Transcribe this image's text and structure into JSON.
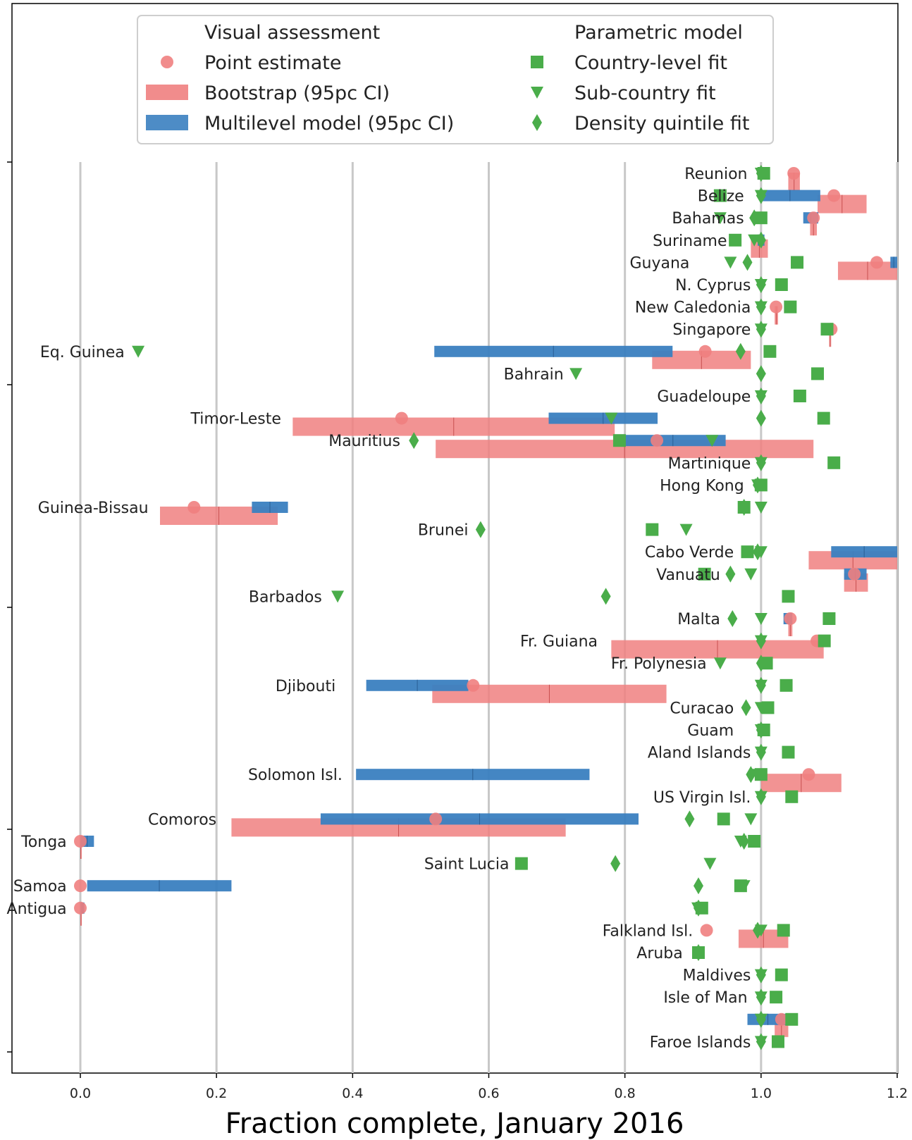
{
  "chart_data": {
    "type": "scatter",
    "xlabel": "Fraction complete, January 2016",
    "ylabel": "",
    "title": "",
    "xlim": [
      -0.1,
      1.2
    ],
    "x_ticks": [
      0.0,
      0.2,
      0.4,
      0.6,
      0.8,
      1.0,
      1.2
    ],
    "x_tick_labels": [
      "0.0",
      "0.2",
      "0.4",
      "0.6",
      "0.8",
      "1.0",
      "1.2"
    ],
    "grid": "vertical gridlines at x ticks",
    "legend": {
      "placement": "top-center",
      "columns": [
        {
          "heading": "Visual assessment",
          "entries": [
            {
              "label": "Point estimate",
              "marker": "circle",
              "color": "#f08080"
            },
            {
              "label": "Bootstrap (95pc CI)",
              "marker": "bar",
              "color": "#f08080"
            },
            {
              "label": "Multilevel model (95pc CI)",
              "marker": "bar",
              "color": "#3a7fc0"
            }
          ]
        },
        {
          "heading": "Parametric model",
          "entries": [
            {
              "label": "Country-level fit",
              "marker": "square",
              "color": "#4aad4a"
            },
            {
              "label": "Sub-country fit",
              "marker": "triangle",
              "color": "#4aad4a"
            },
            {
              "label": "Density quintile fit",
              "marker": "diamond",
              "color": "#4aad4a"
            }
          ]
        }
      ]
    },
    "colors": {
      "point": "#f08080",
      "bootstrap": "#f08080",
      "multilevel": "#3a7fc0",
      "parametric": "#4aad4a",
      "grid": "#c8c8c8"
    },
    "countries": [
      {
        "name": "Reunion",
        "label_x": 0.98,
        "point": 1.048,
        "boot": [
          1.04,
          1.057
        ],
        "ml": null,
        "square": 1.004,
        "triangle": 1.0,
        "diamond": 1.0
      },
      {
        "name": "Belize",
        "label_x": 0.975,
        "point": 1.107,
        "boot": [
          1.083,
          1.155
        ],
        "ml": [
          0.998,
          1.087
        ],
        "square": 0.94,
        "triangle": 1.0,
        "diamond": 1.0
      },
      {
        "name": "Bahamas",
        "label_x": 0.975,
        "point": 1.077,
        "boot": [
          1.072,
          1.082
        ],
        "ml": [
          1.062,
          1.084
        ],
        "square": 1.0,
        "triangle": 0.94,
        "diamond": 0.99
      },
      {
        "name": "Suriname",
        "label_x": 0.95,
        "point": null,
        "boot": [
          0.985,
          1.01
        ],
        "ml": [
          0.995,
          1.005
        ],
        "square": 0.962,
        "triangle": 0.99,
        "diamond": 1.0
      },
      {
        "name": "Guyana",
        "label_x": 0.895,
        "point": 1.17,
        "boot": [
          1.113,
          1.2
        ],
        "ml": [
          1.19,
          1.2
        ],
        "square": 1.053,
        "triangle": 0.955,
        "diamond": 0.98
      },
      {
        "name": "N. Cyprus",
        "label_x": 0.985,
        "point": null,
        "boot": null,
        "ml": null,
        "square": 1.03,
        "triangle": 1.0,
        "diamond": 1.0
      },
      {
        "name": "New Caledonia",
        "label_x": 0.985,
        "point": 1.022,
        "boot": [
          1.02,
          1.025
        ],
        "ml": null,
        "square": 1.043,
        "triangle": 1.0,
        "diamond": 1.0
      },
      {
        "name": "Singapore",
        "label_x": 0.985,
        "point": 1.103,
        "boot": [
          1.1,
          1.103
        ],
        "ml": [
          1.097,
          1.101
        ],
        "square": 1.097,
        "triangle": 1.0,
        "diamond": 1.0
      },
      {
        "name": "Eq. Guinea",
        "label_x": 0.065,
        "point": 0.918,
        "boot": [
          0.84,
          0.985
        ],
        "ml": [
          0.52,
          0.87
        ],
        "square": 1.013,
        "triangle": 0.085,
        "diamond": 0.97
      },
      {
        "name": "Bahrain",
        "label_x": 0.71,
        "point": null,
        "boot": null,
        "ml": null,
        "square": 1.083,
        "triangle": 0.728,
        "diamond": 1.0
      },
      {
        "name": "Guadeloupe",
        "label_x": 0.985,
        "point": null,
        "boot": null,
        "ml": null,
        "square": 1.057,
        "triangle": 1.0,
        "diamond": 1.0
      },
      {
        "name": "Timor-Leste",
        "label_x": 0.295,
        "point": 0.472,
        "boot": [
          0.312,
          0.785
        ],
        "ml": [
          0.688,
          0.848
        ],
        "square": 1.092,
        "triangle": 0.78,
        "diamond": 1.0
      },
      {
        "name": "Mauritius",
        "label_x": 0.47,
        "point": 0.847,
        "boot": [
          0.522,
          1.077
        ],
        "ml": [
          0.793,
          0.948
        ],
        "square": 0.792,
        "triangle": 0.928,
        "diamond": 0.49
      },
      {
        "name": "Martinique",
        "label_x": 0.985,
        "point": null,
        "boot": null,
        "ml": null,
        "square": 1.107,
        "triangle": 1.0,
        "diamond": 1.0
      },
      {
        "name": "Hong Kong",
        "label_x": 0.975,
        "point": null,
        "boot": null,
        "ml": null,
        "square": 1.0,
        "triangle": 0.995,
        "diamond": 0.995
      },
      {
        "name": "Guinea-Bissau",
        "label_x": 0.1,
        "point": 0.167,
        "boot": [
          0.117,
          0.29
        ],
        "ml": [
          0.252,
          0.305
        ],
        "square": 0.975,
        "triangle": 1.0,
        "diamond": 0.975
      },
      {
        "name": "Brunei",
        "label_x": 0.57,
        "point": null,
        "boot": null,
        "ml": null,
        "square": 0.84,
        "triangle": 0.89,
        "diamond": 0.588
      },
      {
        "name": "Cabo Verde",
        "label_x": 0.96,
        "point": null,
        "boot": [
          1.07,
          1.2
        ],
        "ml": [
          1.103,
          1.2
        ],
        "square": 0.98,
        "triangle": 1.0,
        "diamond": 0.995
      },
      {
        "name": "Vanuatu",
        "label_x": 0.94,
        "point": 1.137,
        "boot": [
          1.122,
          1.157
        ],
        "ml": [
          1.122,
          1.155
        ],
        "square": 0.917,
        "triangle": 0.985,
        "diamond": 0.955
      },
      {
        "name": "Barbados",
        "label_x": 0.355,
        "point": null,
        "boot": null,
        "ml": null,
        "square": 1.04,
        "triangle": 0.378,
        "diamond": 0.772
      },
      {
        "name": "Malta",
        "label_x": 0.94,
        "point": 1.043,
        "boot": [
          1.04,
          1.046
        ],
        "ml": [
          1.033,
          1.046
        ],
        "square": 1.1,
        "triangle": 1.0,
        "diamond": 0.958
      },
      {
        "name": "Fr. Guiana",
        "label_x": 0.76,
        "point": 1.082,
        "boot": [
          0.78,
          1.092
        ],
        "ml": null,
        "square": 1.093,
        "triangle": 1.0,
        "diamond": 1.0
      },
      {
        "name": "Fr. Polynesia",
        "label_x": 0.92,
        "point": null,
        "boot": null,
        "ml": null,
        "square": 1.008,
        "triangle": 0.94,
        "diamond": 1.0
      },
      {
        "name": "Djibouti",
        "label_x": 0.375,
        "point": 0.577,
        "boot": [
          0.517,
          0.861
        ],
        "ml": [
          0.42,
          0.57
        ],
        "square": 1.037,
        "triangle": 1.0,
        "diamond": 1.0
      },
      {
        "name": "Curacao",
        "label_x": 0.96,
        "point": null,
        "boot": null,
        "ml": null,
        "square": 1.01,
        "triangle": 1.0,
        "diamond": 0.978
      },
      {
        "name": "Guam",
        "label_x": 0.96,
        "point": null,
        "boot": null,
        "ml": null,
        "square": 1.004,
        "triangle": 1.0,
        "diamond": 1.0
      },
      {
        "name": "Aland Islands",
        "label_x": 0.985,
        "point": null,
        "boot": null,
        "ml": null,
        "square": 1.04,
        "triangle": 1.0,
        "diamond": 1.0
      },
      {
        "name": "Solomon Isl.",
        "label_x": 0.385,
        "point": 1.07,
        "boot": [
          1.0,
          1.118
        ],
        "ml": [
          0.405,
          0.748
        ],
        "square": 1.0,
        "triangle": 0.995,
        "diamond": 0.985
      },
      {
        "name": "US Virgin Isl.",
        "label_x": 0.985,
        "point": null,
        "boot": null,
        "ml": null,
        "square": 1.045,
        "triangle": 1.0,
        "diamond": 1.0
      },
      {
        "name": "Comoros",
        "label_x": 0.2,
        "point": 0.522,
        "boot": [
          0.222,
          0.713
        ],
        "ml": [
          0.353,
          0.82
        ],
        "square": 0.945,
        "triangle": 0.985,
        "diamond": 0.895
      },
      {
        "name": "Tonga",
        "label_x": -0.02,
        "point": 0.0,
        "boot": [
          0.0,
          0.001
        ],
        "ml": [
          0.0,
          0.02
        ],
        "square": 0.99,
        "triangle": 0.97,
        "diamond": 0.975
      },
      {
        "name": "Saint Lucia",
        "label_x": 0.63,
        "point": null,
        "boot": null,
        "ml": null,
        "square": 0.648,
        "triangle": 0.925,
        "diamond": 0.786
      },
      {
        "name": "Samoa",
        "label_x": -0.02,
        "point": 0.0,
        "boot": null,
        "ml": [
          0.01,
          0.222
        ],
        "square": 0.97,
        "triangle": 0.975,
        "diamond": 0.908
      },
      {
        "name": "Antigua",
        "label_x": -0.02,
        "point": 0.0,
        "boot": [
          0.0,
          0.002
        ],
        "ml": [
          0.0,
          0.006
        ],
        "square": 0.913,
        "triangle": 0.907,
        "diamond": 0.908
      },
      {
        "name": "Falkland Isl.",
        "label_x": 0.9,
        "point": 0.92,
        "boot": [
          0.967,
          1.04
        ],
        "ml": null,
        "square": 1.033,
        "triangle": 1.0,
        "diamond": 0.995
      },
      {
        "name": "Aruba",
        "label_x": 0.885,
        "point": null,
        "boot": null,
        "ml": null,
        "square": 0.908,
        "triangle": 0.908,
        "diamond": 0.908
      },
      {
        "name": "Maldives",
        "label_x": 0.985,
        "point": null,
        "boot": null,
        "ml": null,
        "square": 1.03,
        "triangle": 1.0,
        "diamond": 1.0
      },
      {
        "name": "Isle of Man",
        "label_x": 0.98,
        "point": null,
        "boot": null,
        "ml": null,
        "square": 1.022,
        "triangle": 1.0,
        "diamond": 1.0
      },
      {
        "name": "",
        "label_x": null,
        "point": 1.03,
        "boot": [
          1.02,
          1.04
        ],
        "ml": [
          0.98,
          1.04
        ],
        "square": 1.045,
        "triangle": 1.0,
        "diamond": 1.0
      },
      {
        "name": "Faroe Islands",
        "label_x": 0.985,
        "point": null,
        "boot": null,
        "ml": null,
        "square": 1.025,
        "triangle": 1.0,
        "diamond": 1.0
      }
    ]
  }
}
